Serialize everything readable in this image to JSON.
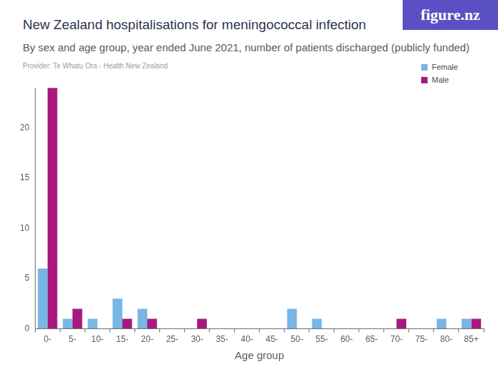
{
  "chart_data": {
    "type": "bar",
    "title": "New Zealand hospitalisations for meningococcal infection",
    "subtitle": "By sex and age group, year ended June 2021, number of patients discharged (publicly funded)",
    "source": "Provider: Te Whatu Ora - Health New Zealand",
    "logo": "figure.nz",
    "x_label": "Age group",
    "categories": [
      "0-",
      "5-",
      "10-",
      "15-",
      "20-",
      "25-",
      "30-",
      "35-",
      "40-",
      "45-",
      "50-",
      "55-",
      "60-",
      "65-",
      "70-",
      "75-",
      "80-",
      "85+"
    ],
    "series": [
      {
        "name": "Female",
        "color": "#78b6e6",
        "values": [
          6,
          1,
          1,
          3,
          2,
          0,
          0,
          0,
          0,
          0,
          2,
          1,
          0,
          0,
          0,
          0,
          1,
          1
        ]
      },
      {
        "name": "Male",
        "color": "#a8197f",
        "values": [
          24,
          2,
          0,
          1,
          1,
          0,
          1,
          0,
          0,
          0,
          0,
          0,
          0,
          0,
          1,
          0,
          0,
          1
        ]
      }
    ],
    "ylim": [
      0,
      24
    ],
    "yticks": [
      0,
      5,
      10,
      15,
      20
    ],
    "grid": false,
    "legend": "top-right"
  }
}
